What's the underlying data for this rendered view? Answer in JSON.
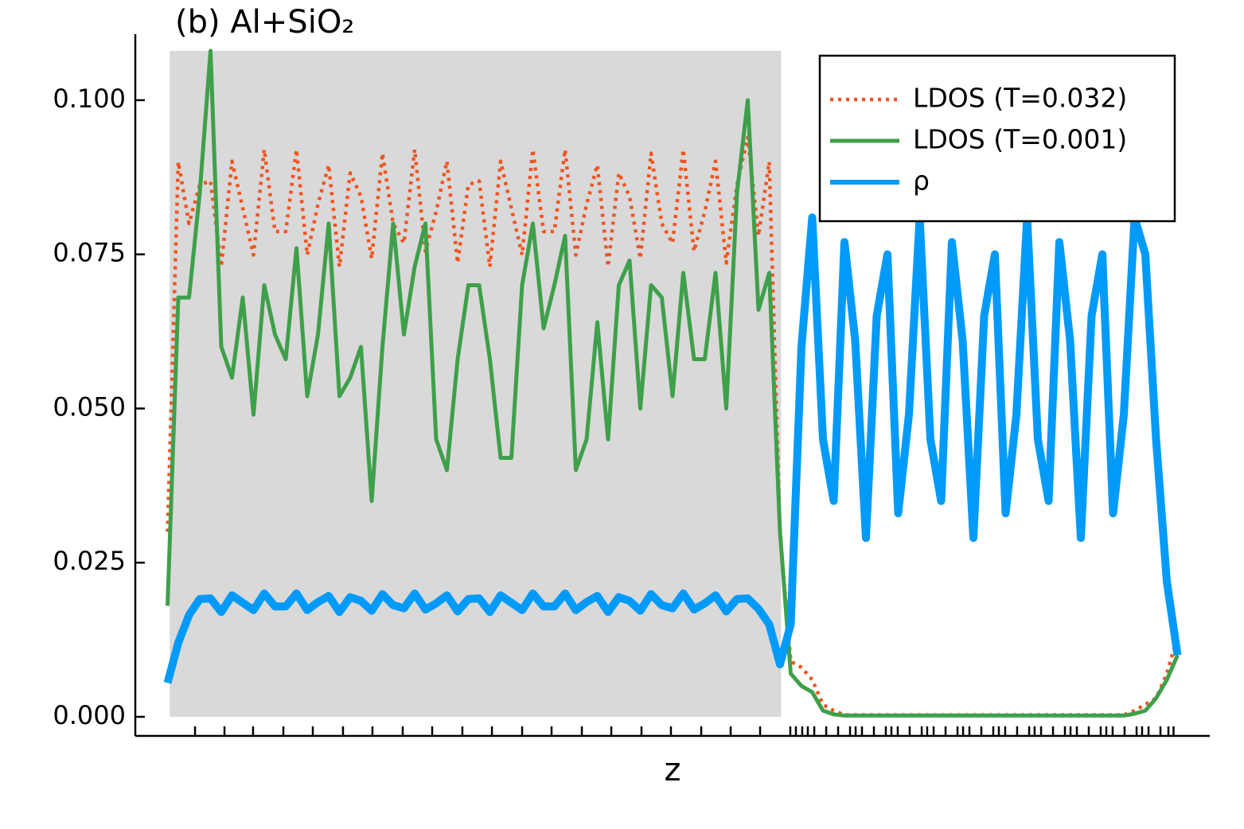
{
  "chart_data": {
    "type": "line",
    "title": "(b) Al+SiO₂",
    "xlabel": "z",
    "xlim": [
      0,
      100
    ],
    "ylim": [
      -0.0031,
      0.1107
    ],
    "yticks": [
      {
        "value": 0,
        "label": "0.000"
      },
      0.025,
      {
        "value": 0.05,
        "label": "0.050"
      },
      0.075,
      {
        "value": 0.1,
        "label": "0.100"
      }
    ],
    "xticks": [
      5.56,
      8.3,
      10.96,
      13.78,
      16.52,
      19.33,
      22.07,
      24.89,
      27.63,
      30.44,
      33.19,
      36.0,
      38.74,
      41.56,
      44.3,
      47.11,
      49.85,
      52.67,
      55.41,
      58.15,
      60.96,
      61.48,
      62.07,
      62.59,
      63.19,
      64.3,
      65.41,
      66.52,
      67.04,
      67.63,
      68.74,
      69.85,
      70.37,
      70.96,
      72.07,
      73.19,
      73.7,
      74.3,
      75.41,
      76.52,
      77.04,
      77.63,
      78.74,
      79.85,
      80.37,
      80.96,
      82.07,
      83.19,
      83.7,
      84.3,
      85.41,
      86.52,
      87.04,
      87.63,
      88.74,
      89.85,
      90.37,
      90.96,
      92.07,
      93.19,
      93.7,
      94.3,
      95.41,
      96.15,
      96.63
    ],
    "grid": false,
    "legend": "top-right",
    "shaded_region": {
      "xlim": [
        3.2,
        60.1
      ],
      "ylim": [
        0,
        0.108
      ],
      "color": "#d9d9d9"
    },
    "x": [
      3,
      4,
      5,
      6,
      7,
      8,
      9,
      10,
      11,
      12,
      13,
      14,
      15,
      16,
      17,
      18,
      19,
      20,
      21,
      22,
      23,
      24,
      25,
      26,
      27,
      28,
      29,
      30,
      31,
      32,
      33,
      34,
      35,
      36,
      37,
      38,
      39,
      40,
      41,
      42,
      43,
      44,
      45,
      46,
      47,
      48,
      49,
      50,
      51,
      52,
      53,
      54,
      55,
      56,
      57,
      58,
      59,
      60,
      61,
      62,
      63,
      64,
      65,
      66,
      67,
      68,
      69,
      70,
      71,
      72,
      73,
      74,
      75,
      76,
      77,
      78,
      79,
      80,
      81,
      82,
      83,
      84,
      85,
      86,
      87,
      88,
      89,
      90,
      91,
      92,
      93,
      94,
      95,
      96,
      97
    ],
    "series": [
      {
        "name": "LDOS (T=0.032)",
        "color": "#f0541e",
        "style": "dotted",
        "values": [
          0.03,
          0.09,
          0.08,
          0.0863,
          0.0869,
          0.073,
          0.0901,
          0.0825,
          0.0749,
          0.092,
          0.0787,
          0.0787,
          0.092,
          0.0749,
          0.0831,
          0.0895,
          0.073,
          0.0882,
          0.0844,
          0.0743,
          0.0914,
          0.08,
          0.0768,
          0.092,
          0.0755,
          0.0819,
          0.0901,
          0.0736,
          0.0863,
          0.0869,
          0.073,
          0.0901,
          0.0825,
          0.0749,
          0.092,
          0.0787,
          0.0787,
          0.092,
          0.0749,
          0.0831,
          0.0895,
          0.073,
          0.0882,
          0.0844,
          0.0743,
          0.0914,
          0.08,
          0.0768,
          0.092,
          0.0755,
          0.0819,
          0.0901,
          0.0736,
          0.0863,
          0.094,
          0.078,
          0.09,
          0.03,
          0.009,
          0.008,
          0.006,
          0.002,
          0.001,
          0.0003,
          0.0003,
          0.0003,
          0.0003,
          0.0003,
          0.0003,
          0.0003,
          0.0003,
          0.0003,
          0.0003,
          0.0003,
          0.0003,
          0.0003,
          0.0003,
          0.0003,
          0.0003,
          0.0003,
          0.0003,
          0.0003,
          0.0003,
          0.0003,
          0.0003,
          0.0003,
          0.0003,
          0.0003,
          0.0003,
          0.0003,
          0.001,
          0.002,
          0.003,
          0.007,
          0.013
        ]
      },
      {
        "name": "LDOS (T=0.001)",
        "color": "#3ea04a",
        "style": "solid",
        "values": [
          0.018,
          0.068,
          0.068,
          0.085,
          0.108,
          0.06,
          0.055,
          0.068,
          0.049,
          0.07,
          0.062,
          0.058,
          0.076,
          0.052,
          0.062,
          0.08,
          0.052,
          0.055,
          0.06,
          0.035,
          0.06,
          0.08,
          0.062,
          0.073,
          0.08,
          0.045,
          0.04,
          0.058,
          0.07,
          0.07,
          0.058,
          0.042,
          0.042,
          0.07,
          0.08,
          0.063,
          0.07,
          0.078,
          0.04,
          0.045,
          0.064,
          0.045,
          0.07,
          0.074,
          0.05,
          0.07,
          0.068,
          0.052,
          0.072,
          0.058,
          0.058,
          0.072,
          0.05,
          0.085,
          0.1,
          0.066,
          0.072,
          0.03,
          0.007,
          0.005,
          0.004,
          0.001,
          0.0004,
          0.0002,
          0.0002,
          0.0002,
          0.0002,
          0.0002,
          0.0002,
          0.0002,
          0.0002,
          0.0002,
          0.0002,
          0.0002,
          0.0002,
          0.0002,
          0.0002,
          0.0002,
          0.0002,
          0.0002,
          0.0002,
          0.0002,
          0.0002,
          0.0002,
          0.0002,
          0.0002,
          0.0002,
          0.0002,
          0.0002,
          0.0002,
          0.0005,
          0.001,
          0.003,
          0.006,
          0.01
        ]
      },
      {
        "name": "ρ",
        "color": "#009af9",
        "style": "solid",
        "values": [
          0.0055,
          0.012,
          0.0165,
          0.0191,
          0.0192,
          0.017,
          0.0197,
          0.0185,
          0.0173,
          0.02,
          0.0179,
          0.0179,
          0.02,
          0.0173,
          0.0186,
          0.0196,
          0.017,
          0.0194,
          0.0188,
          0.0172,
          0.0199,
          0.0181,
          0.0176,
          0.02,
          0.0174,
          0.0184,
          0.0197,
          0.0171,
          0.0191,
          0.0192,
          0.017,
          0.0197,
          0.0185,
          0.0173,
          0.02,
          0.0179,
          0.0179,
          0.02,
          0.0173,
          0.0186,
          0.0196,
          0.017,
          0.0194,
          0.0188,
          0.0172,
          0.0199,
          0.0181,
          0.0176,
          0.02,
          0.0174,
          0.0184,
          0.0197,
          0.0171,
          0.0191,
          0.0192,
          0.0175,
          0.015,
          0.0085,
          0.015,
          0.06,
          0.081,
          0.045,
          0.035,
          0.077,
          0.061,
          0.029,
          0.065,
          0.075,
          0.033,
          0.049,
          0.081,
          0.045,
          0.035,
          0.077,
          0.061,
          0.029,
          0.065,
          0.075,
          0.033,
          0.049,
          0.081,
          0.045,
          0.035,
          0.077,
          0.061,
          0.029,
          0.065,
          0.075,
          0.033,
          0.049,
          0.081,
          0.075,
          0.045,
          0.022,
          0.01
        ]
      }
    ]
  }
}
